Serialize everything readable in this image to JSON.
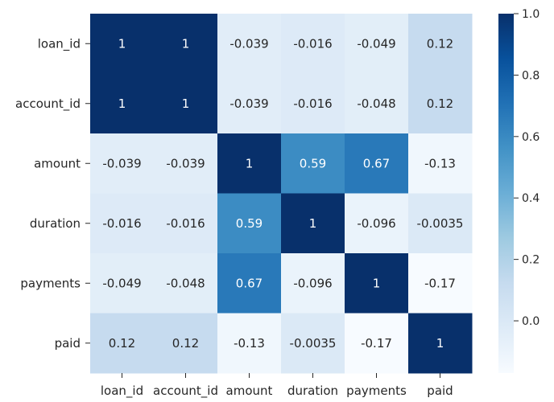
{
  "chart_data": {
    "type": "heatmap",
    "title": "",
    "xlabel": "",
    "ylabel": "",
    "x_labels": [
      "loan_id",
      "account_id",
      "amount",
      "duration",
      "payments",
      "paid"
    ],
    "y_labels": [
      "loan_id",
      "account_id",
      "amount",
      "duration",
      "payments",
      "paid"
    ],
    "values": [
      [
        1,
        1,
        -0.039,
        -0.016,
        -0.049,
        0.12
      ],
      [
        1,
        1,
        -0.039,
        -0.016,
        -0.048,
        0.12
      ],
      [
        -0.039,
        -0.039,
        1,
        0.59,
        0.67,
        -0.13
      ],
      [
        -0.016,
        -0.016,
        0.59,
        1,
        -0.096,
        -0.0035
      ],
      [
        -0.049,
        -0.048,
        0.67,
        -0.096,
        1,
        -0.17
      ],
      [
        0.12,
        0.12,
        -0.13,
        -0.0035,
        -0.17,
        1
      ]
    ],
    "annotations": [
      [
        "1",
        "1",
        "-0.039",
        "-0.016",
        "-0.049",
        "0.12"
      ],
      [
        "1",
        "1",
        "-0.039",
        "-0.016",
        "-0.048",
        "0.12"
      ],
      [
        "-0.039",
        "-0.039",
        "1",
        "0.59",
        "0.67",
        "-0.13"
      ],
      [
        "-0.016",
        "-0.016",
        "0.59",
        "1",
        "-0.096",
        "-0.0035"
      ],
      [
        "-0.049",
        "-0.048",
        "0.67",
        "-0.096",
        "1",
        "-0.17"
      ],
      [
        "0.12",
        "0.12",
        "-0.13",
        "-0.0035",
        "-0.17",
        "1"
      ]
    ],
    "colormap": "Blues",
    "colormap_stops": [
      "#f7fbff",
      "#deebf7",
      "#c6dbef",
      "#9ecae1",
      "#6baed6",
      "#4292c6",
      "#2171b5",
      "#08519c",
      "#08306b"
    ],
    "vmin": -0.17,
    "vmax": 1.0,
    "colorbar": {
      "ticks": [
        0.0,
        0.2,
        0.4,
        0.6,
        0.8,
        1.0
      ],
      "tick_labels": [
        "0.0",
        "0.2",
        "0.4",
        "0.6",
        "0.8",
        "1.0"
      ],
      "position": "right"
    },
    "grid": false
  }
}
